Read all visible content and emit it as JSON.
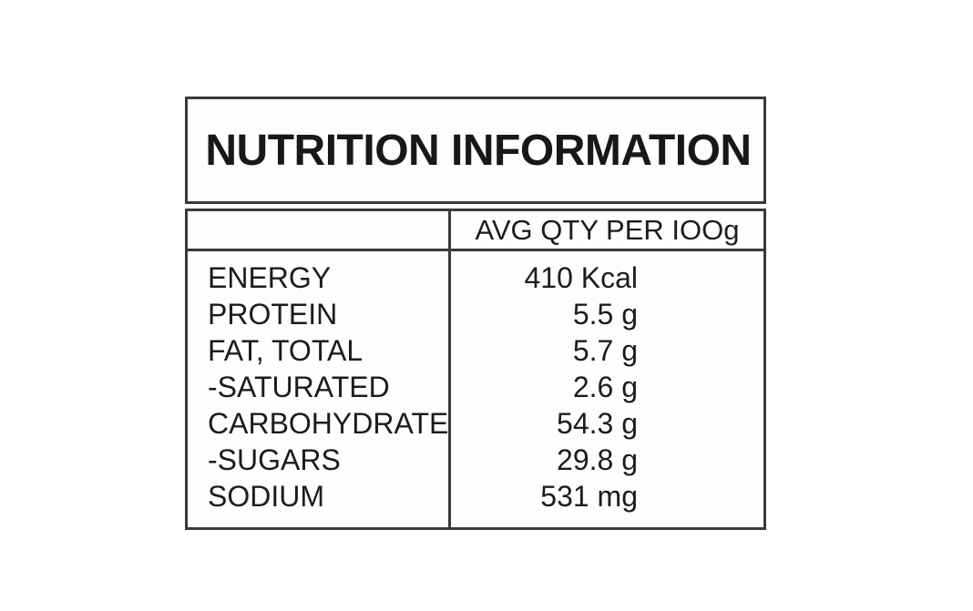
{
  "label": {
    "title": "NUTRITION INFORMATION",
    "header": {
      "qty_column": "AVG QTY PER IOOg"
    },
    "rows": [
      {
        "name": "ENERGY",
        "value": "410 Kcal"
      },
      {
        "name": "PROTEIN",
        "value": "5.5 g"
      },
      {
        "name": "FAT, TOTAL",
        "value": "5.7 g"
      },
      {
        "name": "-SATURATED",
        "value": "2.6 g"
      },
      {
        "name": "CARBOHYDRATE",
        "value": "54.3 g"
      },
      {
        "name": "-SUGARS",
        "value": "29.8 g"
      },
      {
        "name": "SODIUM",
        "value": "531 mg"
      }
    ],
    "colors": {
      "border": "#3a3a3a",
      "text": "#1e1e1e",
      "background": "#ffffff"
    }
  }
}
